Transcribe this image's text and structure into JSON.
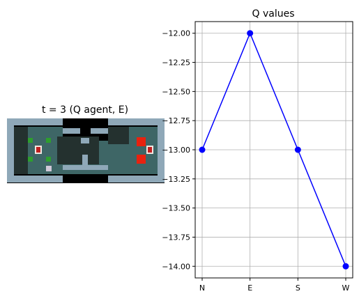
{
  "left_panel": {
    "title": "t = 3 (Q agent, E)"
  },
  "colors": {
    "series": "#0000ff",
    "grid": "#b0b0b0",
    "axis": "#000000",
    "floor": "#3e6666",
    "floor_dark": "#24312f",
    "wall": "#8fa8b8",
    "lava": "#e8220f",
    "void": "#000000"
  },
  "chart_data": {
    "type": "line",
    "title": "Q values",
    "categories": [
      "N",
      "E",
      "S",
      "W"
    ],
    "values": [
      -13.0,
      -12.0,
      -13.0,
      -14.0
    ],
    "ylim": [
      -14.1,
      -11.9
    ],
    "yticks": [
      -12.0,
      -12.25,
      -12.5,
      -12.75,
      -13.0,
      -13.25,
      -13.5,
      -13.75,
      -14.0
    ],
    "ytick_labels": [
      "−12.00",
      "−12.25",
      "−12.50",
      "−12.75",
      "−13.00",
      "−13.25",
      "−13.50",
      "−13.75",
      "−14.00"
    ],
    "xlabel": "",
    "ylabel": "",
    "grid": true,
    "marker": "circle"
  }
}
